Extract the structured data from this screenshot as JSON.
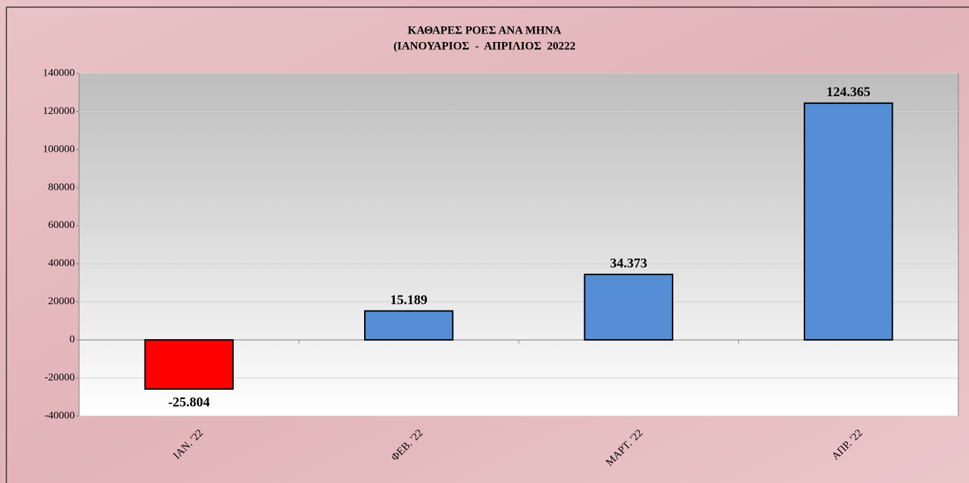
{
  "chart_data": {
    "type": "bar",
    "title": "ΚΑΘΑΡΕΣ ΡΟΕΣ ΑΝΑ ΜΗΝΑ",
    "subtitle": "(ΙΑΝΟΥΑΡΙΟΣ  -  ΑΠΡΙΛΙΟΣ  20222",
    "categories": [
      "ΙΑΝ. '22",
      "ΦΕΒ. '22",
      "ΜΑΡΤ. '22",
      "ΑΠΡ. '22"
    ],
    "values": [
      -25804,
      15189,
      34373,
      124365
    ],
    "value_labels": [
      "-25.804",
      "15.189",
      "34.373",
      "124.365"
    ],
    "colors": [
      "#ff0000",
      "#558ed5",
      "#558ed5",
      "#558ed5"
    ],
    "ylim": [
      -40000,
      140000
    ],
    "yticks": [
      -40000,
      -20000,
      0,
      20000,
      40000,
      60000,
      80000,
      100000,
      120000,
      140000
    ],
    "grid": true
  }
}
